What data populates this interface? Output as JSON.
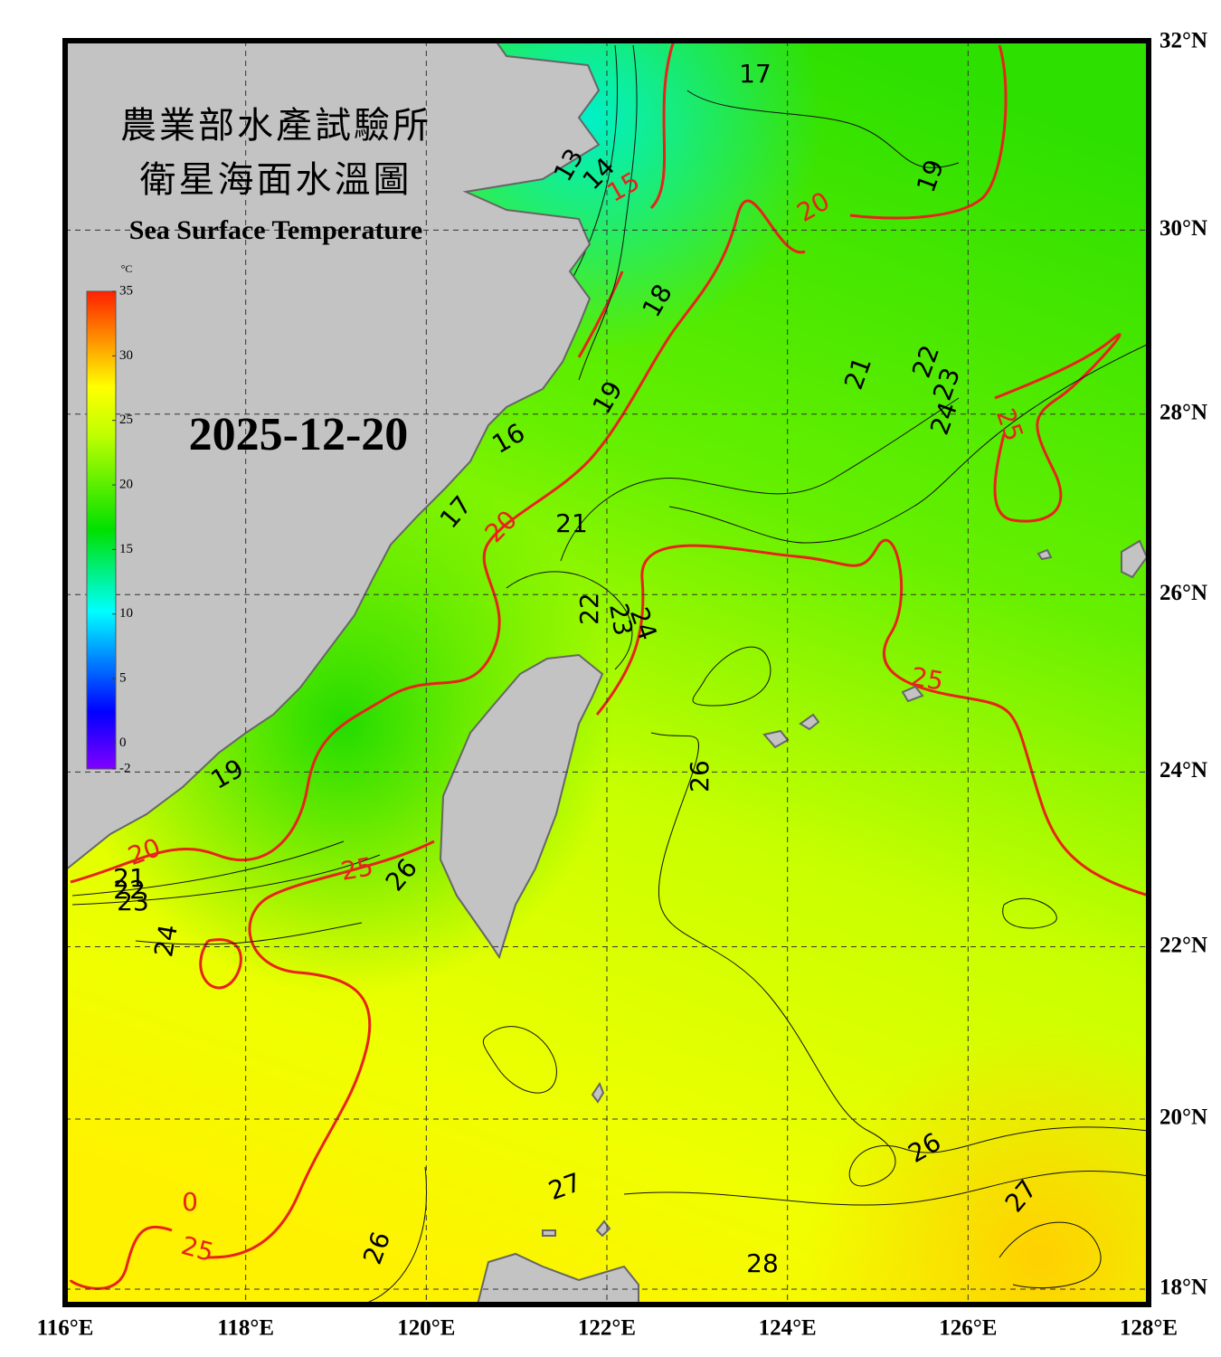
{
  "header": {
    "title_zh": "農業部水產試驗所",
    "subtitle_zh": "衛星海面水溫圖",
    "title_en": "Sea Surface Temperature",
    "date": "2025-12-20"
  },
  "colorbar": {
    "unit": "°C",
    "range": [
      -2,
      35
    ],
    "ticks": [
      35,
      30,
      25,
      20,
      15,
      10,
      5,
      0,
      -2
    ]
  },
  "map": {
    "lon_range": [
      116,
      128
    ],
    "lat_range": [
      18,
      32
    ],
    "lon_ticks": [
      {
        "value": 116,
        "label": "116°E"
      },
      {
        "value": 118,
        "label": "118°E"
      },
      {
        "value": 120,
        "label": "120°E"
      },
      {
        "value": 122,
        "label": "122°E"
      },
      {
        "value": 124,
        "label": "124°E"
      },
      {
        "value": 126,
        "label": "126°E"
      },
      {
        "value": 128,
        "label": "128°E"
      }
    ],
    "lat_ticks": [
      {
        "value": 18,
        "label": "18°N"
      },
      {
        "value": 20,
        "label": "20°N"
      },
      {
        "value": 22,
        "label": "22°N"
      },
      {
        "value": 24,
        "label": "24°N"
      },
      {
        "value": 26,
        "label": "26°N"
      },
      {
        "value": 28,
        "label": "28°N"
      },
      {
        "value": 30,
        "label": "30°N"
      },
      {
        "value": 32,
        "label": "32°N"
      }
    ]
  },
  "contour_labels": [
    "17",
    "13",
    "14",
    "15",
    "20",
    "19",
    "18",
    "21",
    "22",
    "23",
    "24",
    "25",
    "19",
    "16",
    "17",
    "20",
    "21",
    "22",
    "23",
    "24",
    "25",
    "26",
    "19",
    "20",
    "25",
    "26",
    "21",
    "22",
    "23",
    "24",
    "26",
    "27",
    "27",
    "0",
    "25",
    "26",
    "28"
  ]
}
